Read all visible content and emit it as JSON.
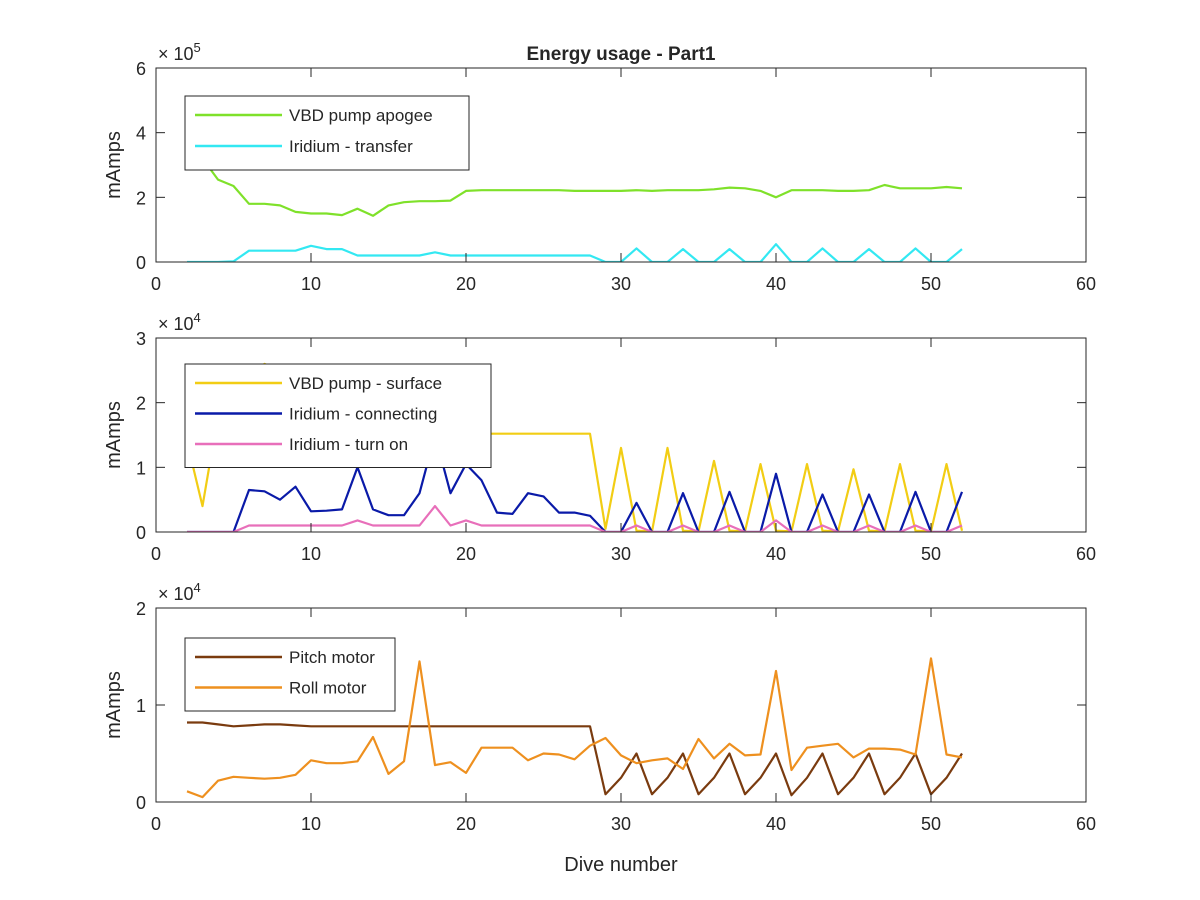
{
  "chart_data": [
    {
      "type": "line",
      "title": "Energy usage - Part1",
      "xlabel": "",
      "ylabel": "mAmps",
      "xlim": [
        0,
        60
      ],
      "ylim": [
        0,
        600000
      ],
      "xticks": [
        "0",
        "10",
        "20",
        "30",
        "40",
        "50",
        "60"
      ],
      "yticks": [
        "0",
        "2",
        "4",
        "6"
      ],
      "exponent_base": "× 10",
      "exponent_power": "5",
      "legend_position": "top-left",
      "grid": false,
      "x": [
        2,
        3,
        4,
        5,
        6,
        7,
        8,
        9,
        10,
        11,
        12,
        13,
        14,
        15,
        16,
        17,
        18,
        19,
        20,
        21,
        22,
        23,
        24,
        25,
        26,
        27,
        28,
        29,
        30,
        31,
        32,
        33,
        34,
        35,
        36,
        37,
        38,
        39,
        40,
        41,
        42,
        43,
        44,
        45,
        46,
        47,
        48,
        49,
        50,
        51,
        52
      ],
      "series": [
        {
          "name": "VBD pump apogee",
          "color": "#7fe12a",
          "values": [
            450000,
            320000,
            255000,
            235000,
            180000,
            180000,
            175000,
            155000,
            150000,
            150000,
            145000,
            165000,
            143000,
            175000,
            185000,
            188000,
            188000,
            190000,
            220000,
            222000,
            222000,
            222000,
            222000,
            222000,
            222000,
            220000,
            220000,
            220000,
            220000,
            222000,
            220000,
            222000,
            222000,
            222000,
            225000,
            230000,
            228000,
            220000,
            200000,
            222000,
            222000,
            222000,
            220000,
            220000,
            222000,
            238000,
            228000,
            228000,
            228000,
            232000,
            228000
          ]
        },
        {
          "name": "Iridium - transfer",
          "color": "#33e8f2",
          "values": [
            0,
            0,
            0,
            2000,
            35000,
            35000,
            35000,
            35000,
            50000,
            40000,
            40000,
            20000,
            20000,
            20000,
            20000,
            20000,
            30000,
            20000,
            20000,
            20000,
            20000,
            20000,
            20000,
            20000,
            20000,
            20000,
            20000,
            0,
            0,
            42000,
            0,
            0,
            40000,
            0,
            0,
            40000,
            0,
            0,
            55000,
            0,
            0,
            42000,
            0,
            0,
            40000,
            0,
            0,
            42000,
            0,
            0,
            40000
          ]
        }
      ]
    },
    {
      "type": "line",
      "title": "",
      "xlabel": "",
      "ylabel": "mAmps",
      "xlim": [
        0,
        60
      ],
      "ylim": [
        0,
        30000
      ],
      "xticks": [
        "0",
        "10",
        "20",
        "30",
        "40",
        "50",
        "60"
      ],
      "yticks": [
        "0",
        "1",
        "2",
        "3"
      ],
      "exponent_base": "× 10",
      "exponent_power": "4",
      "legend_position": "top-left",
      "grid": false,
      "x": [
        2,
        3,
        4,
        5,
        6,
        7,
        8,
        9,
        10,
        11,
        12,
        13,
        14,
        15,
        16,
        17,
        18,
        19,
        20,
        21,
        22,
        23,
        24,
        25,
        26,
        27,
        28,
        29,
        30,
        31,
        32,
        33,
        34,
        35,
        36,
        37,
        38,
        39,
        40,
        41,
        42,
        43,
        44,
        45,
        46,
        47,
        48,
        49,
        50,
        51,
        52
      ],
      "series": [
        {
          "name": "VBD pump - surface",
          "color": "#f2cd14",
          "values": [
            14000,
            4000,
            18000,
            22000,
            24000,
            26000,
            25000,
            22000,
            20000,
            18000,
            17000,
            16500,
            16000,
            15500,
            15500,
            15300,
            15200,
            15200,
            15200,
            15200,
            15200,
            15200,
            15200,
            15200,
            15200,
            15200,
            15200,
            500,
            13000,
            200,
            100,
            13000,
            200,
            100,
            11000,
            200,
            100,
            10500,
            200,
            100,
            10500,
            200,
            100,
            9700,
            200,
            100,
            10500,
            200,
            100,
            10500,
            200
          ]
        },
        {
          "name": "Iridium - connecting",
          "color": "#0a1aa8",
          "values": [
            0,
            0,
            0,
            0,
            6500,
            6300,
            5000,
            7000,
            3200,
            3300,
            3500,
            10000,
            3500,
            2600,
            2600,
            6000,
            15000,
            6000,
            10500,
            8000,
            3000,
            2800,
            6000,
            5500,
            3000,
            3000,
            2500,
            0,
            0,
            4500,
            0,
            0,
            6000,
            0,
            0,
            6200,
            0,
            0,
            9000,
            0,
            0,
            5800,
            0,
            0,
            5800,
            0,
            0,
            6200,
            0,
            0,
            6200
          ]
        },
        {
          "name": "Iridium - turn on",
          "color": "#e86fba",
          "values": [
            0,
            0,
            0,
            0,
            1000,
            1000,
            1000,
            1000,
            1000,
            1000,
            1000,
            1800,
            1000,
            1000,
            1000,
            1000,
            4000,
            1000,
            1800,
            1000,
            1000,
            1000,
            1000,
            1000,
            1000,
            1000,
            1000,
            0,
            0,
            1000,
            0,
            0,
            1000,
            0,
            0,
            1000,
            0,
            0,
            1800,
            0,
            0,
            1000,
            0,
            0,
            1000,
            0,
            0,
            1000,
            0,
            0,
            1000
          ]
        }
      ]
    },
    {
      "type": "line",
      "title": "",
      "xlabel": "Dive number",
      "ylabel": "mAmps",
      "xlim": [
        0,
        60
      ],
      "ylim": [
        0,
        20000
      ],
      "xticks": [
        "0",
        "10",
        "20",
        "30",
        "40",
        "50",
        "60"
      ],
      "yticks": [
        "0",
        "1",
        "2"
      ],
      "exponent_base": "× 10",
      "exponent_power": "4",
      "legend_position": "top-left",
      "grid": false,
      "x": [
        2,
        3,
        4,
        5,
        6,
        7,
        8,
        9,
        10,
        11,
        12,
        13,
        14,
        15,
        16,
        17,
        18,
        19,
        20,
        21,
        22,
        23,
        24,
        25,
        26,
        27,
        28,
        29,
        30,
        31,
        32,
        33,
        34,
        35,
        36,
        37,
        38,
        39,
        40,
        41,
        42,
        43,
        44,
        45,
        46,
        47,
        48,
        49,
        50,
        51,
        52
      ],
      "series": [
        {
          "name": "Pitch motor",
          "color": "#7a3b0f",
          "values": [
            8200,
            8200,
            8000,
            7800,
            7900,
            8000,
            8000,
            7900,
            7800,
            7800,
            7800,
            7800,
            7800,
            7800,
            7800,
            7800,
            7800,
            7800,
            7800,
            7800,
            7800,
            7800,
            7800,
            7800,
            7800,
            7800,
            7800,
            800,
            2500,
            5000,
            800,
            2500,
            5000,
            800,
            2500,
            5000,
            800,
            2500,
            5000,
            700,
            2500,
            5000,
            800,
            2500,
            5000,
            800,
            2500,
            5000,
            800,
            2500,
            5000
          ]
        },
        {
          "name": "Roll motor",
          "color": "#ee901f",
          "values": [
            1100,
            500,
            2200,
            2600,
            2500,
            2400,
            2500,
            2800,
            4300,
            4000,
            4000,
            4200,
            6700,
            2900,
            4200,
            14500,
            3800,
            4100,
            3000,
            5600,
            5600,
            5600,
            4300,
            5000,
            4900,
            4400,
            5800,
            6600,
            4800,
            4000,
            4300,
            4500,
            3400,
            6500,
            4500,
            6000,
            4800,
            4900,
            13500,
            3300,
            5600,
            5800,
            6000,
            4600,
            5500,
            5500,
            5400,
            4900,
            14800,
            4900,
            4600
          ]
        }
      ]
    }
  ]
}
